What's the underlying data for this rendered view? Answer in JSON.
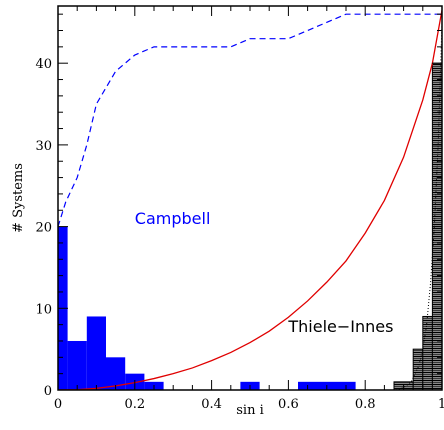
{
  "chart_data": {
    "type": "bar",
    "xlabel": "sin i",
    "ylabel": "# Systems",
    "xlim": [
      0,
      1
    ],
    "ylim": [
      0,
      47
    ],
    "x_ticks": [
      0,
      0.2,
      0.4,
      0.6,
      0.8,
      1
    ],
    "x_tick_labels": [
      "0",
      "0.2",
      "0.4",
      "0.6",
      "0.8",
      "1"
    ],
    "y_ticks": [
      0,
      10,
      20,
      30,
      40
    ],
    "y_tick_labels": [
      "0",
      "10",
      "20",
      "30",
      "40"
    ],
    "bin_width": 0.025,
    "grid": false,
    "colors": {
      "campbell": "#0000ff",
      "thiele_innes": "#888888",
      "curve": "#e00000",
      "dashed": "#0000ff"
    },
    "series": [
      {
        "name": "Campbell",
        "style": "solid-fill histogram",
        "bins": [
          {
            "x0": 0.0,
            "x1": 0.025,
            "count": 20
          },
          {
            "x0": 0.025,
            "x1": 0.075,
            "count": 6
          },
          {
            "x0": 0.075,
            "x1": 0.125,
            "count": 9
          },
          {
            "x0": 0.125,
            "x1": 0.175,
            "count": 4
          },
          {
            "x0": 0.175,
            "x1": 0.225,
            "count": 2
          },
          {
            "x0": 0.225,
            "x1": 0.275,
            "count": 1
          },
          {
            "x0": 0.475,
            "x1": 0.525,
            "count": 1
          },
          {
            "x0": 0.625,
            "x1": 0.775,
            "count": 1
          }
        ]
      },
      {
        "name": "Thiele-Innes",
        "style": "hatched histogram",
        "bins": [
          {
            "x0": 0.875,
            "x1": 0.925,
            "count": 1
          },
          {
            "x0": 0.925,
            "x1": 0.95,
            "count": 5
          },
          {
            "x0": 0.95,
            "x1": 0.975,
            "count": 9
          },
          {
            "x0": 0.975,
            "x1": 1.0,
            "count": 40
          }
        ]
      },
      {
        "style": "dashed cumulative line",
        "x": [
          0,
          0.02,
          0.05,
          0.075,
          0.1,
          0.125,
          0.15,
          0.175,
          0.2,
          0.25,
          0.3,
          0.45,
          0.5,
          0.6,
          0.65,
          0.75,
          0.8,
          1.0
        ],
        "y": [
          20,
          23,
          26,
          30,
          35,
          37,
          39,
          40,
          41,
          42,
          42,
          42,
          43,
          43,
          44,
          46,
          46,
          46
        ]
      },
      {
        "style": "solid curve",
        "x": [
          0,
          0.05,
          0.1,
          0.15,
          0.2,
          0.25,
          0.3,
          0.35,
          0.4,
          0.45,
          0.5,
          0.55,
          0.6,
          0.65,
          0.7,
          0.75,
          0.8,
          0.85,
          0.9,
          0.95,
          0.975,
          1.0
        ],
        "y": [
          0,
          0.05,
          0.2,
          0.5,
          0.9,
          1.4,
          2.0,
          2.7,
          3.6,
          4.6,
          5.8,
          7.2,
          8.9,
          10.9,
          13.2,
          15.8,
          19.2,
          23.2,
          28.5,
          35.5,
          40.0,
          46.5
        ]
      },
      {
        "style": "dotted curve",
        "x": [
          0.88,
          0.9,
          0.92,
          0.94,
          0.95,
          0.96,
          0.97,
          0.98,
          0.99,
          1.0
        ],
        "y": [
          0,
          0.3,
          1.0,
          3.0,
          5.0,
          8.0,
          13.0,
          20.0,
          30.0,
          45.0
        ]
      }
    ],
    "annotations": [
      {
        "text": "Campbell",
        "x": 0.2,
        "y": 20.3,
        "color": "#0000ff"
      },
      {
        "text": "Thiele−Innes",
        "x": 0.6,
        "y": 7.1,
        "color": "#000000"
      }
    ]
  }
}
